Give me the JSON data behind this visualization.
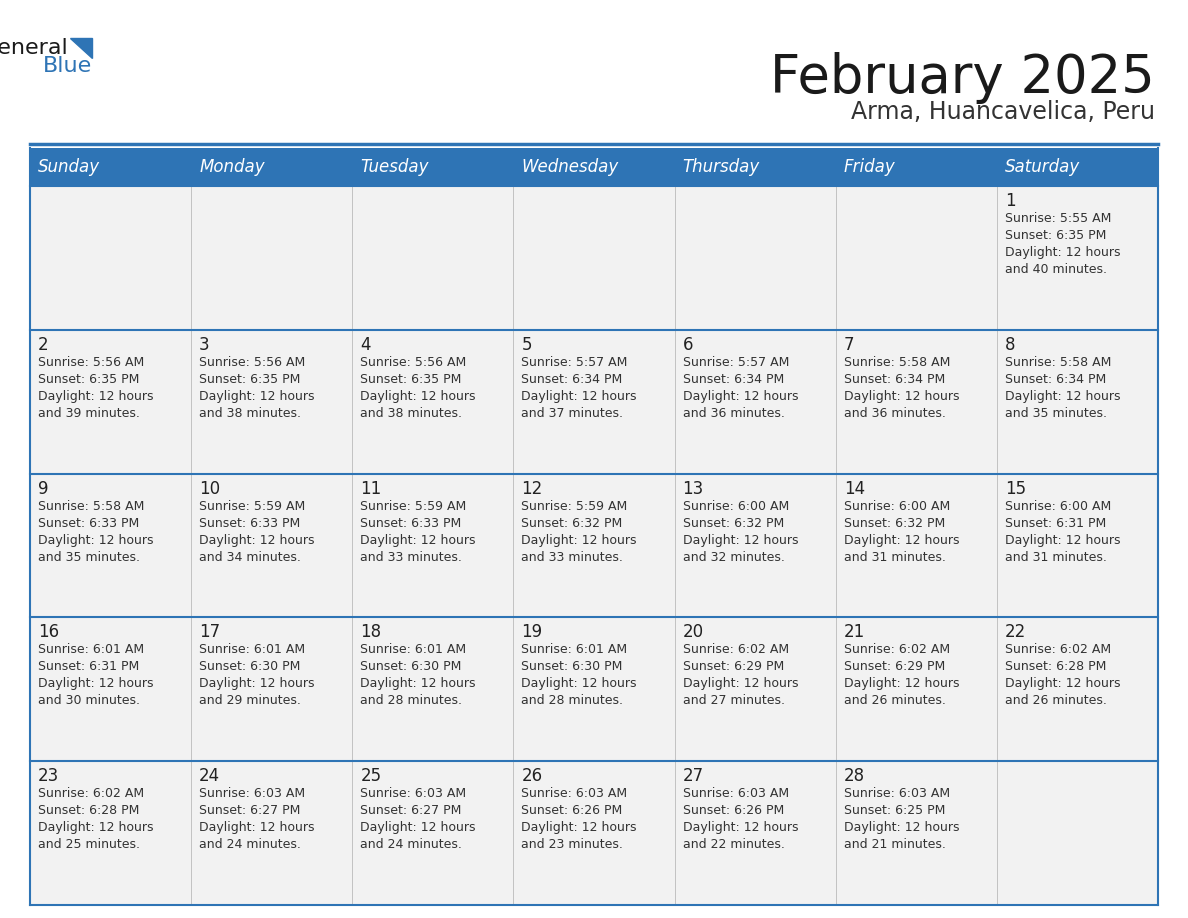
{
  "title": "February 2025",
  "subtitle": "Arma, Huancavelica, Peru",
  "days_of_week": [
    "Sunday",
    "Monday",
    "Tuesday",
    "Wednesday",
    "Thursday",
    "Friday",
    "Saturday"
  ],
  "header_bg": "#2E74B5",
  "header_text": "#FFFFFF",
  "cell_bg": "#F2F2F2",
  "border_color": "#2E74B5",
  "day_num_color": "#222222",
  "info_text_color": "#333333",
  "title_color": "#1a1a1a",
  "subtitle_color": "#333333",
  "calendar_data": [
    [
      null,
      null,
      null,
      null,
      null,
      null,
      {
        "day": 1,
        "sunrise": "5:55 AM",
        "sunset": "6:35 PM",
        "daylight": "12 hours and 40 minutes."
      }
    ],
    [
      {
        "day": 2,
        "sunrise": "5:56 AM",
        "sunset": "6:35 PM",
        "daylight": "12 hours and 39 minutes."
      },
      {
        "day": 3,
        "sunrise": "5:56 AM",
        "sunset": "6:35 PM",
        "daylight": "12 hours and 38 minutes."
      },
      {
        "day": 4,
        "sunrise": "5:56 AM",
        "sunset": "6:35 PM",
        "daylight": "12 hours and 38 minutes."
      },
      {
        "day": 5,
        "sunrise": "5:57 AM",
        "sunset": "6:34 PM",
        "daylight": "12 hours and 37 minutes."
      },
      {
        "day": 6,
        "sunrise": "5:57 AM",
        "sunset": "6:34 PM",
        "daylight": "12 hours and 36 minutes."
      },
      {
        "day": 7,
        "sunrise": "5:58 AM",
        "sunset": "6:34 PM",
        "daylight": "12 hours and 36 minutes."
      },
      {
        "day": 8,
        "sunrise": "5:58 AM",
        "sunset": "6:34 PM",
        "daylight": "12 hours and 35 minutes."
      }
    ],
    [
      {
        "day": 9,
        "sunrise": "5:58 AM",
        "sunset": "6:33 PM",
        "daylight": "12 hours and 35 minutes."
      },
      {
        "day": 10,
        "sunrise": "5:59 AM",
        "sunset": "6:33 PM",
        "daylight": "12 hours and 34 minutes."
      },
      {
        "day": 11,
        "sunrise": "5:59 AM",
        "sunset": "6:33 PM",
        "daylight": "12 hours and 33 minutes."
      },
      {
        "day": 12,
        "sunrise": "5:59 AM",
        "sunset": "6:32 PM",
        "daylight": "12 hours and 33 minutes."
      },
      {
        "day": 13,
        "sunrise": "6:00 AM",
        "sunset": "6:32 PM",
        "daylight": "12 hours and 32 minutes."
      },
      {
        "day": 14,
        "sunrise": "6:00 AM",
        "sunset": "6:32 PM",
        "daylight": "12 hours and 31 minutes."
      },
      {
        "day": 15,
        "sunrise": "6:00 AM",
        "sunset": "6:31 PM",
        "daylight": "12 hours and 31 minutes."
      }
    ],
    [
      {
        "day": 16,
        "sunrise": "6:01 AM",
        "sunset": "6:31 PM",
        "daylight": "12 hours and 30 minutes."
      },
      {
        "day": 17,
        "sunrise": "6:01 AM",
        "sunset": "6:30 PM",
        "daylight": "12 hours and 29 minutes."
      },
      {
        "day": 18,
        "sunrise": "6:01 AM",
        "sunset": "6:30 PM",
        "daylight": "12 hours and 28 minutes."
      },
      {
        "day": 19,
        "sunrise": "6:01 AM",
        "sunset": "6:30 PM",
        "daylight": "12 hours and 28 minutes."
      },
      {
        "day": 20,
        "sunrise": "6:02 AM",
        "sunset": "6:29 PM",
        "daylight": "12 hours and 27 minutes."
      },
      {
        "day": 21,
        "sunrise": "6:02 AM",
        "sunset": "6:29 PM",
        "daylight": "12 hours and 26 minutes."
      },
      {
        "day": 22,
        "sunrise": "6:02 AM",
        "sunset": "6:28 PM",
        "daylight": "12 hours and 26 minutes."
      }
    ],
    [
      {
        "day": 23,
        "sunrise": "6:02 AM",
        "sunset": "6:28 PM",
        "daylight": "12 hours and 25 minutes."
      },
      {
        "day": 24,
        "sunrise": "6:03 AM",
        "sunset": "6:27 PM",
        "daylight": "12 hours and 24 minutes."
      },
      {
        "day": 25,
        "sunrise": "6:03 AM",
        "sunset": "6:27 PM",
        "daylight": "12 hours and 24 minutes."
      },
      {
        "day": 26,
        "sunrise": "6:03 AM",
        "sunset": "6:26 PM",
        "daylight": "12 hours and 23 minutes."
      },
      {
        "day": 27,
        "sunrise": "6:03 AM",
        "sunset": "6:26 PM",
        "daylight": "12 hours and 22 minutes."
      },
      {
        "day": 28,
        "sunrise": "6:03 AM",
        "sunset": "6:25 PM",
        "daylight": "12 hours and 21 minutes."
      },
      null
    ]
  ]
}
